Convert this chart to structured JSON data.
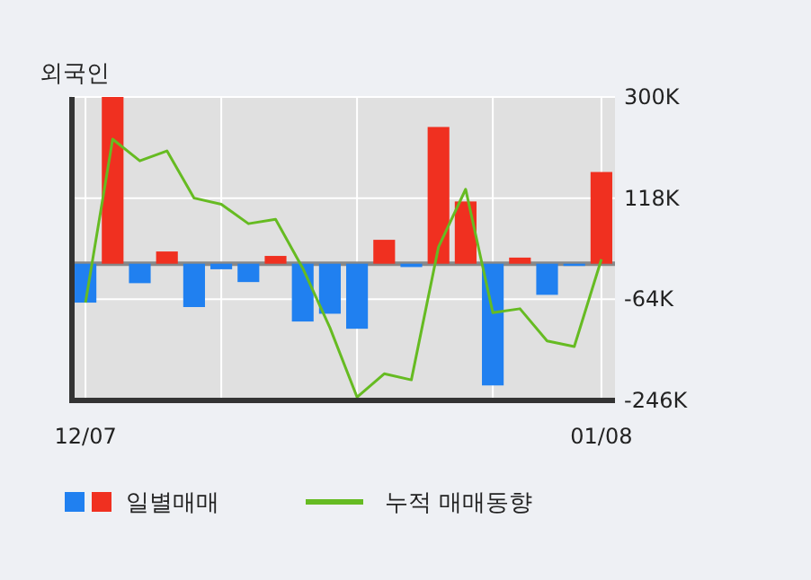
{
  "chart_data": {
    "type": "bar",
    "title": "외국인",
    "categories": [
      "12/07",
      null,
      null,
      null,
      null,
      null,
      null,
      null,
      null,
      null,
      null,
      null,
      null,
      null,
      null,
      null,
      null,
      null,
      null,
      "01/08"
    ],
    "series": [
      {
        "name": "일별매매",
        "colors": [
          "#2080f0",
          "#f03020",
          "#2080f0",
          "#f03020",
          "#2080f0",
          "#2080f0",
          "#2080f0",
          "#f03020",
          "#2080f0",
          "#2080f0",
          "#2080f0",
          "#f03020",
          "#2080f0",
          "#f03020",
          "#f03020",
          "#2080f0",
          "#f03020",
          "#2080f0",
          "#2080f0",
          "#f03020"
        ],
        "values": [
          -70000,
          300000,
          -35000,
          22000,
          -78000,
          -10000,
          -33000,
          14000,
          -104000,
          -90000,
          -117000,
          43000,
          -6000,
          246000,
          112000,
          -219000,
          11000,
          -56000,
          -4000,
          165000
        ]
      },
      {
        "type": "line",
        "name": "누적 매매동향",
        "color": "#66bb22",
        "values": [
          -70000,
          224000,
          185000,
          203000,
          118000,
          107000,
          72000,
          80000,
          -8000,
          -115000,
          -240000,
          -198000,
          -209000,
          30000,
          134000,
          -88000,
          -81000,
          -139000,
          -149000,
          8000
        ]
      }
    ],
    "ylim": [
      -246000,
      300000
    ],
    "yticks": [
      {
        "value": 300000,
        "label": "300K"
      },
      {
        "value": 118000,
        "label": "118K"
      },
      {
        "value": -64000,
        "label": "-64K"
      },
      {
        "value": -246000,
        "label": "-246K"
      }
    ],
    "ref_lines": [
      {
        "axis": "y",
        "value": 0,
        "color": "#888888"
      }
    ],
    "grid": true,
    "legend": "bottom"
  }
}
